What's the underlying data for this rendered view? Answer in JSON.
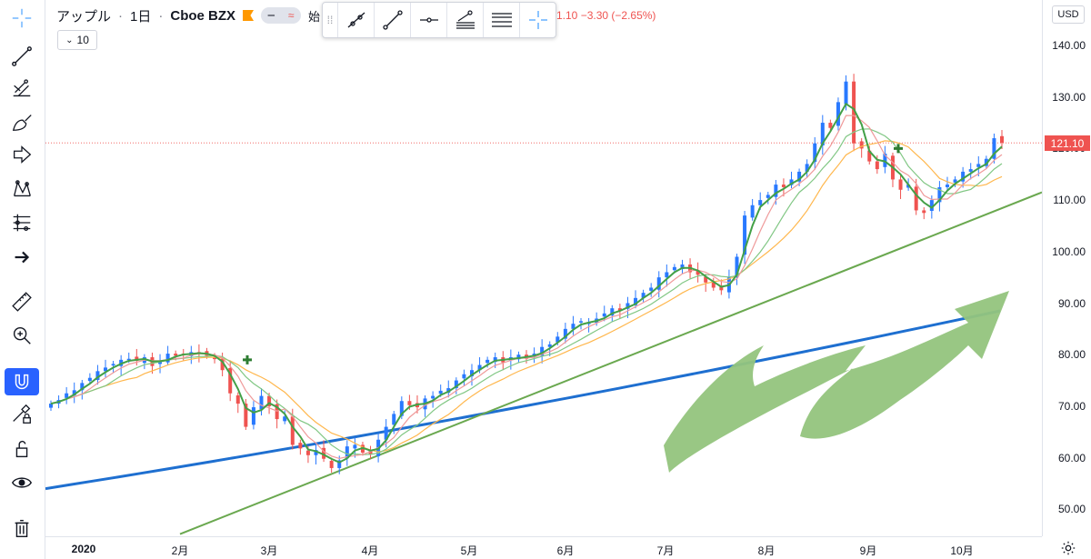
{
  "legend": {
    "symbol": "アップル",
    "interval": "1日",
    "exchange": "Cboe BZX",
    "partial_label": "始",
    "change_readout": "1.10 −3.30 (−2.65%)"
  },
  "interval_button": {
    "label": "10"
  },
  "price_axis": {
    "currency": "USD",
    "labels": [
      "140.00",
      "130.00",
      "120.00",
      "110.00",
      "100.00",
      "90.00",
      "80.00",
      "70.00",
      "60.00",
      "50.00"
    ],
    "last_price": "121.10",
    "last_price_value": 121.1
  },
  "time_axis": {
    "labels": [
      {
        "text": "2020",
        "bold": true
      },
      {
        "text": "2月",
        "bold": false
      },
      {
        "text": "3月",
        "bold": false
      },
      {
        "text": "4月",
        "bold": false
      },
      {
        "text": "5月",
        "bold": false
      },
      {
        "text": "6月",
        "bold": false
      },
      {
        "text": "7月",
        "bold": false
      },
      {
        "text": "8月",
        "bold": false
      },
      {
        "text": "9月",
        "bold": false
      },
      {
        "text": "10月",
        "bold": false
      }
    ]
  },
  "left_toolbar": {
    "tools": [
      "crosshair-icon",
      "trend-line-icon",
      "fib-icon",
      "brush-icon",
      "arrow-shape-icon",
      "pattern-icon",
      "forecast-icon",
      "arrow-right-icon",
      "ruler-icon",
      "zoom-in-icon",
      "magnet-icon",
      "lock-drawing-icon",
      "unlock-icon",
      "eye-icon",
      "trash-icon"
    ],
    "active_tool": "magnet-icon"
  },
  "drawing_toolbar": {
    "tools": [
      "ray-icon",
      "segment-icon",
      "horizontal-ray-icon",
      "parallel-channel-icon",
      "horizontal-lines-icon",
      "crosshair-icon"
    ]
  },
  "colors": {
    "up": "#2979ff",
    "down": "#ef5350",
    "ma_fast": "#43a047",
    "ma_slow": "#81c784",
    "ma_mid": "#ef9a9a",
    "ma_long": "#ffb74d",
    "ma_200": "#1e6fd0",
    "trend_line": "#6aa84f",
    "arrow_fill": "#93c47d",
    "price_line": "#ef5350"
  },
  "chart_data": {
    "type": "candlestick",
    "y_range": [
      45,
      143
    ],
    "closes": [
      70.5,
      71.2,
      72.5,
      73.1,
      74.5,
      75.5,
      76.8,
      77.5,
      78.2,
      79.0,
      79.2,
      78.8,
      79.5,
      77.8,
      78.9,
      80.2,
      79.8,
      80.1,
      80.5,
      80.3,
      79.8,
      79.2,
      77.0,
      72.5,
      70.5,
      66.0,
      69.8,
      72.0,
      70.0,
      67.5,
      68.0,
      62.5,
      61.8,
      60.5,
      61.5,
      59.8,
      58.0,
      59.5,
      62.2,
      62.5,
      61.0,
      60.7,
      63.5,
      66.0,
      68.5,
      71.0,
      70.2,
      69.8,
      71.5,
      72.0,
      73.0,
      73.5,
      75.0,
      76.2,
      77.0,
      78.0,
      79.0,
      79.5,
      78.5,
      79.5,
      80.0,
      79.2,
      80.2,
      81.5,
      82.0,
      83.5,
      85.0,
      86.0,
      86.5,
      86.2,
      87.0,
      88.0,
      89.0,
      88.5,
      90.0,
      91.0,
      92.0,
      93.0,
      95.0,
      96.0,
      97.0,
      97.5,
      96.0,
      95.5,
      94.0,
      93.0,
      92.5,
      95.0,
      99.0,
      107.0,
      109.0,
      110.0,
      111.0,
      113.0,
      112.5,
      114.0,
      115.5,
      117.0,
      121.0,
      125.0,
      124.0,
      129.0,
      133.0,
      121.0,
      120.0,
      117.5,
      116.0,
      119.0,
      114.0,
      112.0,
      113.0,
      108.0,
      107.5,
      110.0,
      112.5,
      113.0,
      114.0,
      115.5,
      116.0,
      117.0,
      118.0,
      122.0,
      121.1
    ],
    "ma200": {
      "start": 54,
      "end": 88.5
    },
    "trend_line": {
      "p1": [
        0.135,
        40
      ],
      "p2": [
        1.0,
        115
      ]
    }
  },
  "arrow_annotation": "arrow-drawing"
}
